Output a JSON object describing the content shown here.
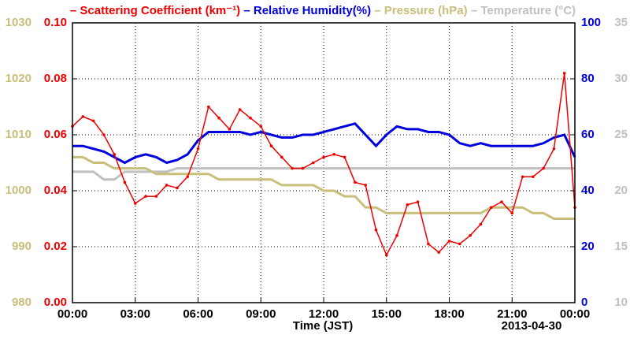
{
  "chart_data": {
    "type": "line",
    "x_label": "Time (JST)",
    "date_label": "2013-04-30",
    "x": [
      0,
      0.5,
      1,
      1.5,
      2,
      2.5,
      3,
      3.5,
      4,
      4.5,
      5,
      5.5,
      6,
      6.5,
      7,
      7.5,
      8,
      8.5,
      9,
      9.5,
      10,
      10.5,
      11,
      11.5,
      12,
      12.5,
      13,
      13.5,
      14,
      14.5,
      15,
      15.5,
      16,
      16.5,
      17,
      17.5,
      18,
      18.5,
      19,
      19.5,
      20,
      20.5,
      21,
      21.5,
      22,
      22.5,
      23,
      23.5,
      24
    ],
    "xlim": [
      0,
      24
    ],
    "xticks": [
      {
        "value": 0,
        "label": "00:00"
      },
      {
        "value": 3,
        "label": "03:00"
      },
      {
        "value": 6,
        "label": "06:00"
      },
      {
        "value": 9,
        "label": "09:00"
      },
      {
        "value": 12,
        "label": "12:00"
      },
      {
        "value": 15,
        "label": "15:00"
      },
      {
        "value": 18,
        "label": "18:00"
      },
      {
        "value": 21,
        "label": "21:00"
      },
      {
        "value": 24,
        "label": "00:00"
      }
    ],
    "ylim": [
      0,
      0.1
    ],
    "yticks": [
      {
        "value": 0,
        "label": "0.00"
      },
      {
        "value": 0.02,
        "label": "0.02"
      },
      {
        "value": 0.04,
        "label": "0.04"
      },
      {
        "value": 0.06,
        "label": "0.06"
      },
      {
        "value": 0.08,
        "label": "0.08"
      },
      {
        "value": 0.1,
        "label": "0.10"
      }
    ],
    "y2lim": [
      0,
      100
    ],
    "y2ticks": [
      0,
      20,
      40,
      60,
      80,
      100
    ],
    "y3lim": [
      980,
      1030
    ],
    "y3ticks": [
      980,
      990,
      1000,
      1010,
      1020,
      1030
    ],
    "y4lim": [
      10,
      35
    ],
    "y4ticks": [
      10,
      15,
      20,
      25,
      30,
      35
    ],
    "grid": true,
    "series": [
      {
        "name": "Scattering Coefficient (km⁻¹)",
        "color": "#ee0000",
        "axis": "y",
        "values": [
          0.063,
          0.0665,
          0.065,
          0.06,
          0.053,
          0.043,
          0.0355,
          0.038,
          0.038,
          0.042,
          0.041,
          0.045,
          0.055,
          0.07,
          0.066,
          0.062,
          0.069,
          0.066,
          0.063,
          0.056,
          0.052,
          0.048,
          0.048,
          0.05,
          0.052,
          0.053,
          0.052,
          0.043,
          0.042,
          0.026,
          0.017,
          0.024,
          0.035,
          0.036,
          0.021,
          0.018,
          0.022,
          0.021,
          0.024,
          0.028,
          0.034,
          0.036,
          0.032,
          0.045,
          0.045,
          0.048,
          0.055,
          0.082,
          0.034
        ]
      },
      {
        "name": "Relative Humidity(%)",
        "color": "#0000dd",
        "axis": "y2",
        "values": [
          56,
          56,
          55,
          54,
          52,
          50,
          52,
          53,
          52,
          50,
          51,
          53,
          58,
          61,
          61,
          61,
          61,
          60,
          61,
          60,
          59,
          59,
          60,
          60,
          61,
          62,
          63,
          64,
          60,
          56,
          60,
          63,
          62,
          62,
          61,
          61,
          60,
          57,
          56,
          57,
          56,
          56,
          56,
          56,
          56,
          57,
          59,
          60,
          52
        ]
      },
      {
        "name": "Pressure (hPa)",
        "color": "#c8bf7a",
        "axis": "y3",
        "values": [
          1006,
          1006,
          1005,
          1005,
          1004,
          1004,
          1004,
          1004,
          1003,
          1003,
          1003,
          1003,
          1003,
          1003,
          1002,
          1002,
          1002,
          1002,
          1002,
          1002,
          1001,
          1001,
          1001,
          1001,
          1000,
          1000,
          999,
          999,
          997,
          997,
          996,
          996,
          996,
          996,
          996,
          996,
          996,
          996,
          996,
          996,
          997,
          997,
          997,
          997,
          996,
          996,
          995,
          995,
          995
        ]
      },
      {
        "name": "Temperature (°C)",
        "color": "#c0c0c0",
        "axis": "y4",
        "values": [
          21.7,
          21.7,
          21.7,
          21,
          21,
          21.7,
          21.7,
          21.7,
          21.7,
          21.7,
          22,
          22,
          22,
          22,
          22,
          22,
          22,
          22,
          22,
          22,
          22,
          22,
          22,
          22,
          22,
          22,
          22,
          22,
          22,
          22,
          22,
          22,
          22,
          22,
          22,
          22,
          22,
          22,
          22,
          22,
          22,
          22,
          22,
          22,
          22,
          22,
          22,
          22,
          22
        ]
      }
    ]
  }
}
